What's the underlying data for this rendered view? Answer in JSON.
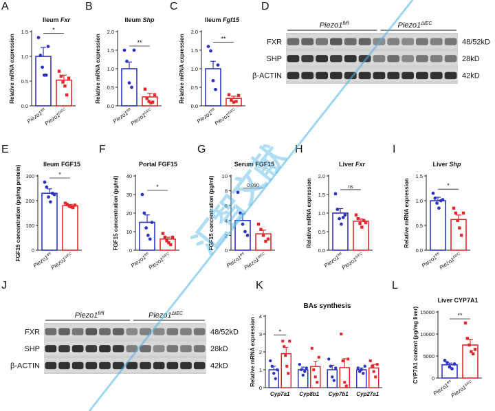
{
  "colors": {
    "ctrl": "#2b34c4",
    "ko": "#e8262a",
    "axis": "#222222",
    "watermark": "#4fb5e6"
  },
  "groups": {
    "ctrl_base": "Piezo1",
    "ctrl_sup": "fl/fl",
    "ko_base": "Piezo1",
    "ko_sup": "ΔIEC"
  },
  "watermark_text": "汇智文献",
  "chart_data": [
    {
      "panel": "A",
      "type": "bar",
      "title_plain": "Ileum ",
      "title_italic": "Fxr",
      "ylabel": "Relative mRNA expression",
      "ylim": [
        0,
        1.5
      ],
      "yticks": [
        "0.0",
        "0.5",
        "1.0",
        "1.5"
      ],
      "categories": [
        "Piezo1 fl/fl",
        "Piezo1 ΔIEC"
      ],
      "values": [
        1.0,
        0.52
      ],
      "sem": [
        0.18,
        0.1
      ],
      "points": [
        [
          1.38,
          1.02,
          0.78,
          0.62,
          0.62,
          1.2
        ],
        [
          0.7,
          0.6,
          0.48,
          0.4,
          0.22,
          0.56
        ]
      ],
      "significance": "*"
    },
    {
      "panel": "B",
      "type": "bar",
      "title_plain": "Ileum ",
      "title_italic": "Shp",
      "ylabel": "Relative mRNA expression",
      "ylim": [
        0,
        2.0
      ],
      "yticks": [
        "0.0",
        "0.5",
        "1.0",
        "1.5",
        "2.0"
      ],
      "categories": [
        "Piezo1 fl/fl",
        "Piezo1 ΔIEC"
      ],
      "values": [
        1.0,
        0.24
      ],
      "sem": [
        0.18,
        0.1
      ],
      "points": [
        [
          1.5,
          1.2,
          0.62,
          0.5,
          1.5
        ],
        [
          0.45,
          0.2,
          0.12,
          0.08,
          0.1,
          0.3
        ]
      ],
      "significance": "**"
    },
    {
      "panel": "C",
      "type": "bar",
      "title_plain": "Ileum ",
      "title_italic": "Fgf15",
      "ylabel": "Relative mRNA expression",
      "ylim": [
        0,
        2.0
      ],
      "yticks": [
        "0.0",
        "0.5",
        "1.0",
        "1.5",
        "2.0"
      ],
      "categories": [
        "Piezo1 fl/fl",
        "Piezo1 ΔIEC"
      ],
      "values": [
        1.0,
        0.2
      ],
      "sem": [
        0.2,
        0.06
      ],
      "points": [
        [
          1.6,
          1.48,
          0.68,
          0.44,
          1.1
        ],
        [
          0.3,
          0.15,
          0.1,
          0.12,
          0.28
        ]
      ],
      "significance": "**"
    },
    {
      "panel": "E",
      "type": "bar",
      "title_plain": "Ileum FGF15",
      "title_italic": "",
      "ylabel": "FGF15 concentration (pg/mg protein)",
      "ylim": [
        0,
        300
      ],
      "yticks": [
        "0",
        "100",
        "200",
        "300"
      ],
      "categories": [
        "Piezo1 fl/fl",
        "Piezo1 ΔIEC"
      ],
      "values": [
        230,
        180
      ],
      "sem": [
        18,
        5
      ],
      "points": [
        [
          275,
          255,
          215,
          195,
          230,
          225
        ],
        [
          190,
          185,
          178,
          175,
          172,
          182
        ]
      ],
      "significance": "*"
    },
    {
      "panel": "F",
      "type": "bar",
      "title_plain": "Portal FGF15",
      "title_italic": "",
      "ylabel": "FGF15 concentration (pg/ml)",
      "ylim": [
        0,
        40
      ],
      "yticks": [
        "0",
        "10",
        "20",
        "30",
        "40"
      ],
      "categories": [
        "Piezo1 fl/fl",
        "Piezo1 ΔIEC"
      ],
      "values": [
        15,
        6
      ],
      "sem": [
        4,
        1
      ],
      "points": [
        [
          30,
          20,
          12,
          8,
          6,
          15
        ],
        [
          9,
          7,
          5,
          4,
          3,
          7
        ]
      ],
      "significance": "*"
    },
    {
      "panel": "G",
      "type": "bar",
      "title_plain": "Serum FGF15",
      "title_italic": "",
      "ylabel": "FGF15 concentration (pg/ml)",
      "ylim": [
        0,
        10
      ],
      "yticks": [
        "0",
        "2",
        "4",
        "6",
        "8",
        "10"
      ],
      "categories": [
        "Piezo1 fl/fl",
        "Piezo1 ΔIEC"
      ],
      "values": [
        4.0,
        2.2
      ],
      "sem": [
        0.9,
        0.5
      ],
      "points": [
        [
          7.8,
          5.0,
          3.5,
          2.5,
          2.0
        ],
        [
          3.5,
          2.8,
          2.0,
          1.2,
          1.5
        ]
      ],
      "significance": "0.090"
    },
    {
      "panel": "H",
      "type": "bar",
      "title_plain": "Liver ",
      "title_italic": "Fxr",
      "ylabel": "Relative mRNA expression",
      "ylim": [
        0,
        2.0
      ],
      "yticks": [
        "0.0",
        "0.5",
        "1.0",
        "1.5",
        "2.0"
      ],
      "categories": [
        "Piezo1 fl/fl",
        "Piezo1 ΔIEC"
      ],
      "values": [
        1.0,
        0.78
      ],
      "sem": [
        0.12,
        0.06
      ],
      "points": [
        [
          1.52,
          1.1,
          0.85,
          0.7,
          0.88,
          0.95
        ],
        [
          0.95,
          0.85,
          0.72,
          0.62,
          0.8,
          0.74
        ]
      ],
      "significance": "ns"
    },
    {
      "panel": "I",
      "type": "bar",
      "title_plain": "Liver ",
      "title_italic": "Shp",
      "ylabel": "Relative mRNA expression",
      "ylim": [
        0,
        1.5
      ],
      "yticks": [
        "0.0",
        "0.5",
        "1.0",
        "1.5"
      ],
      "categories": [
        "Piezo1 fl/fl",
        "Piezo1 ΔIEC"
      ],
      "values": [
        1.0,
        0.62
      ],
      "sem": [
        0.07,
        0.09
      ],
      "points": [
        [
          1.15,
          1.05,
          0.95,
          0.85,
          1.0,
          1.02
        ],
        [
          0.85,
          0.75,
          0.6,
          0.45,
          0.3,
          0.75
        ]
      ],
      "significance": "*"
    },
    {
      "panel": "K",
      "type": "grouped-bar",
      "title_plain": "BAs synthesis",
      "title_italic": "",
      "ylabel": "Relative mRNA expression",
      "ylim": [
        0,
        4
      ],
      "yticks": [
        "0",
        "1",
        "2",
        "3",
        "4"
      ],
      "categories": [
        "Cyp7a1",
        "Cyp8b1",
        "Cyp7b1",
        "Cyp27a1"
      ],
      "series": [
        {
          "name": "Piezo1 fl/fl",
          "values": [
            1.0,
            1.0,
            1.0,
            1.0
          ],
          "sem": [
            0.2,
            0.15,
            0.25,
            0.1
          ],
          "points": [
            [
              1.5,
              1.2,
              0.8,
              0.5,
              1.0
            ],
            [
              1.3,
              1.0,
              0.7,
              0.9,
              1.1
            ],
            [
              1.6,
              1.2,
              0.6,
              0.4,
              1.1
            ],
            [
              1.1,
              0.9,
              1.0,
              0.8,
              1.2
            ]
          ]
        },
        {
          "name": "Piezo1 ΔIEC",
          "values": [
            1.9,
            1.18,
            1.12,
            1.1
          ],
          "sem": [
            0.35,
            0.3,
            0.5,
            0.2
          ],
          "points": [
            [
              2.6,
              2.3,
              1.8,
              1.2,
              0.8,
              2.6
            ],
            [
              2.2,
              1.0,
              0.6,
              0.3,
              1.7
            ],
            [
              3.0,
              1.5,
              0.3,
              0.1,
              1.6
            ],
            [
              1.5,
              1.2,
              0.9,
              0.6,
              1.3
            ]
          ]
        }
      ],
      "significance": [
        {
          "category": "Cyp7a1",
          "label": "*"
        }
      ]
    },
    {
      "panel": "L",
      "type": "bar",
      "title_plain": "Liver CYP7A1",
      "title_italic": "",
      "ylabel": "CYP7A1 content (pg/mg liver)",
      "ylim": [
        0,
        15000
      ],
      "yticks": [
        "0",
        "5000",
        "10000",
        "15000"
      ],
      "categories": [
        "Piezo1 fl/fl",
        "Piezo1 ΔIEC"
      ],
      "values": [
        3000,
        7500
      ],
      "sem": [
        400,
        1300
      ],
      "points": [
        [
          4000,
          3500,
          2500,
          2100,
          3200
        ],
        [
          12500,
          9000,
          7500,
          6000,
          5500,
          6500
        ]
      ],
      "significance": "**"
    }
  ],
  "blots": [
    {
      "panel": "D",
      "header_plain": "Piezo1",
      "groups": [
        {
          "sup": "fl/fl"
        },
        {
          "sup": "ΔIEC"
        }
      ],
      "rows": [
        {
          "label": "FXR",
          "size": "48/52kD"
        },
        {
          "label": "SHP",
          "size": "28kD"
        },
        {
          "label": "β-ACTIN",
          "size": "42kD"
        }
      ]
    },
    {
      "panel": "J",
      "header_plain": "Piezo1",
      "groups": [
        {
          "sup": "fl/fl"
        },
        {
          "sup": "ΔIEC"
        }
      ],
      "rows": [
        {
          "label": "FXR",
          "size": "48/52kD"
        },
        {
          "label": "SHP",
          "size": "28kD"
        },
        {
          "label": "β-ACTIN",
          "size": "42kD"
        }
      ]
    }
  ]
}
